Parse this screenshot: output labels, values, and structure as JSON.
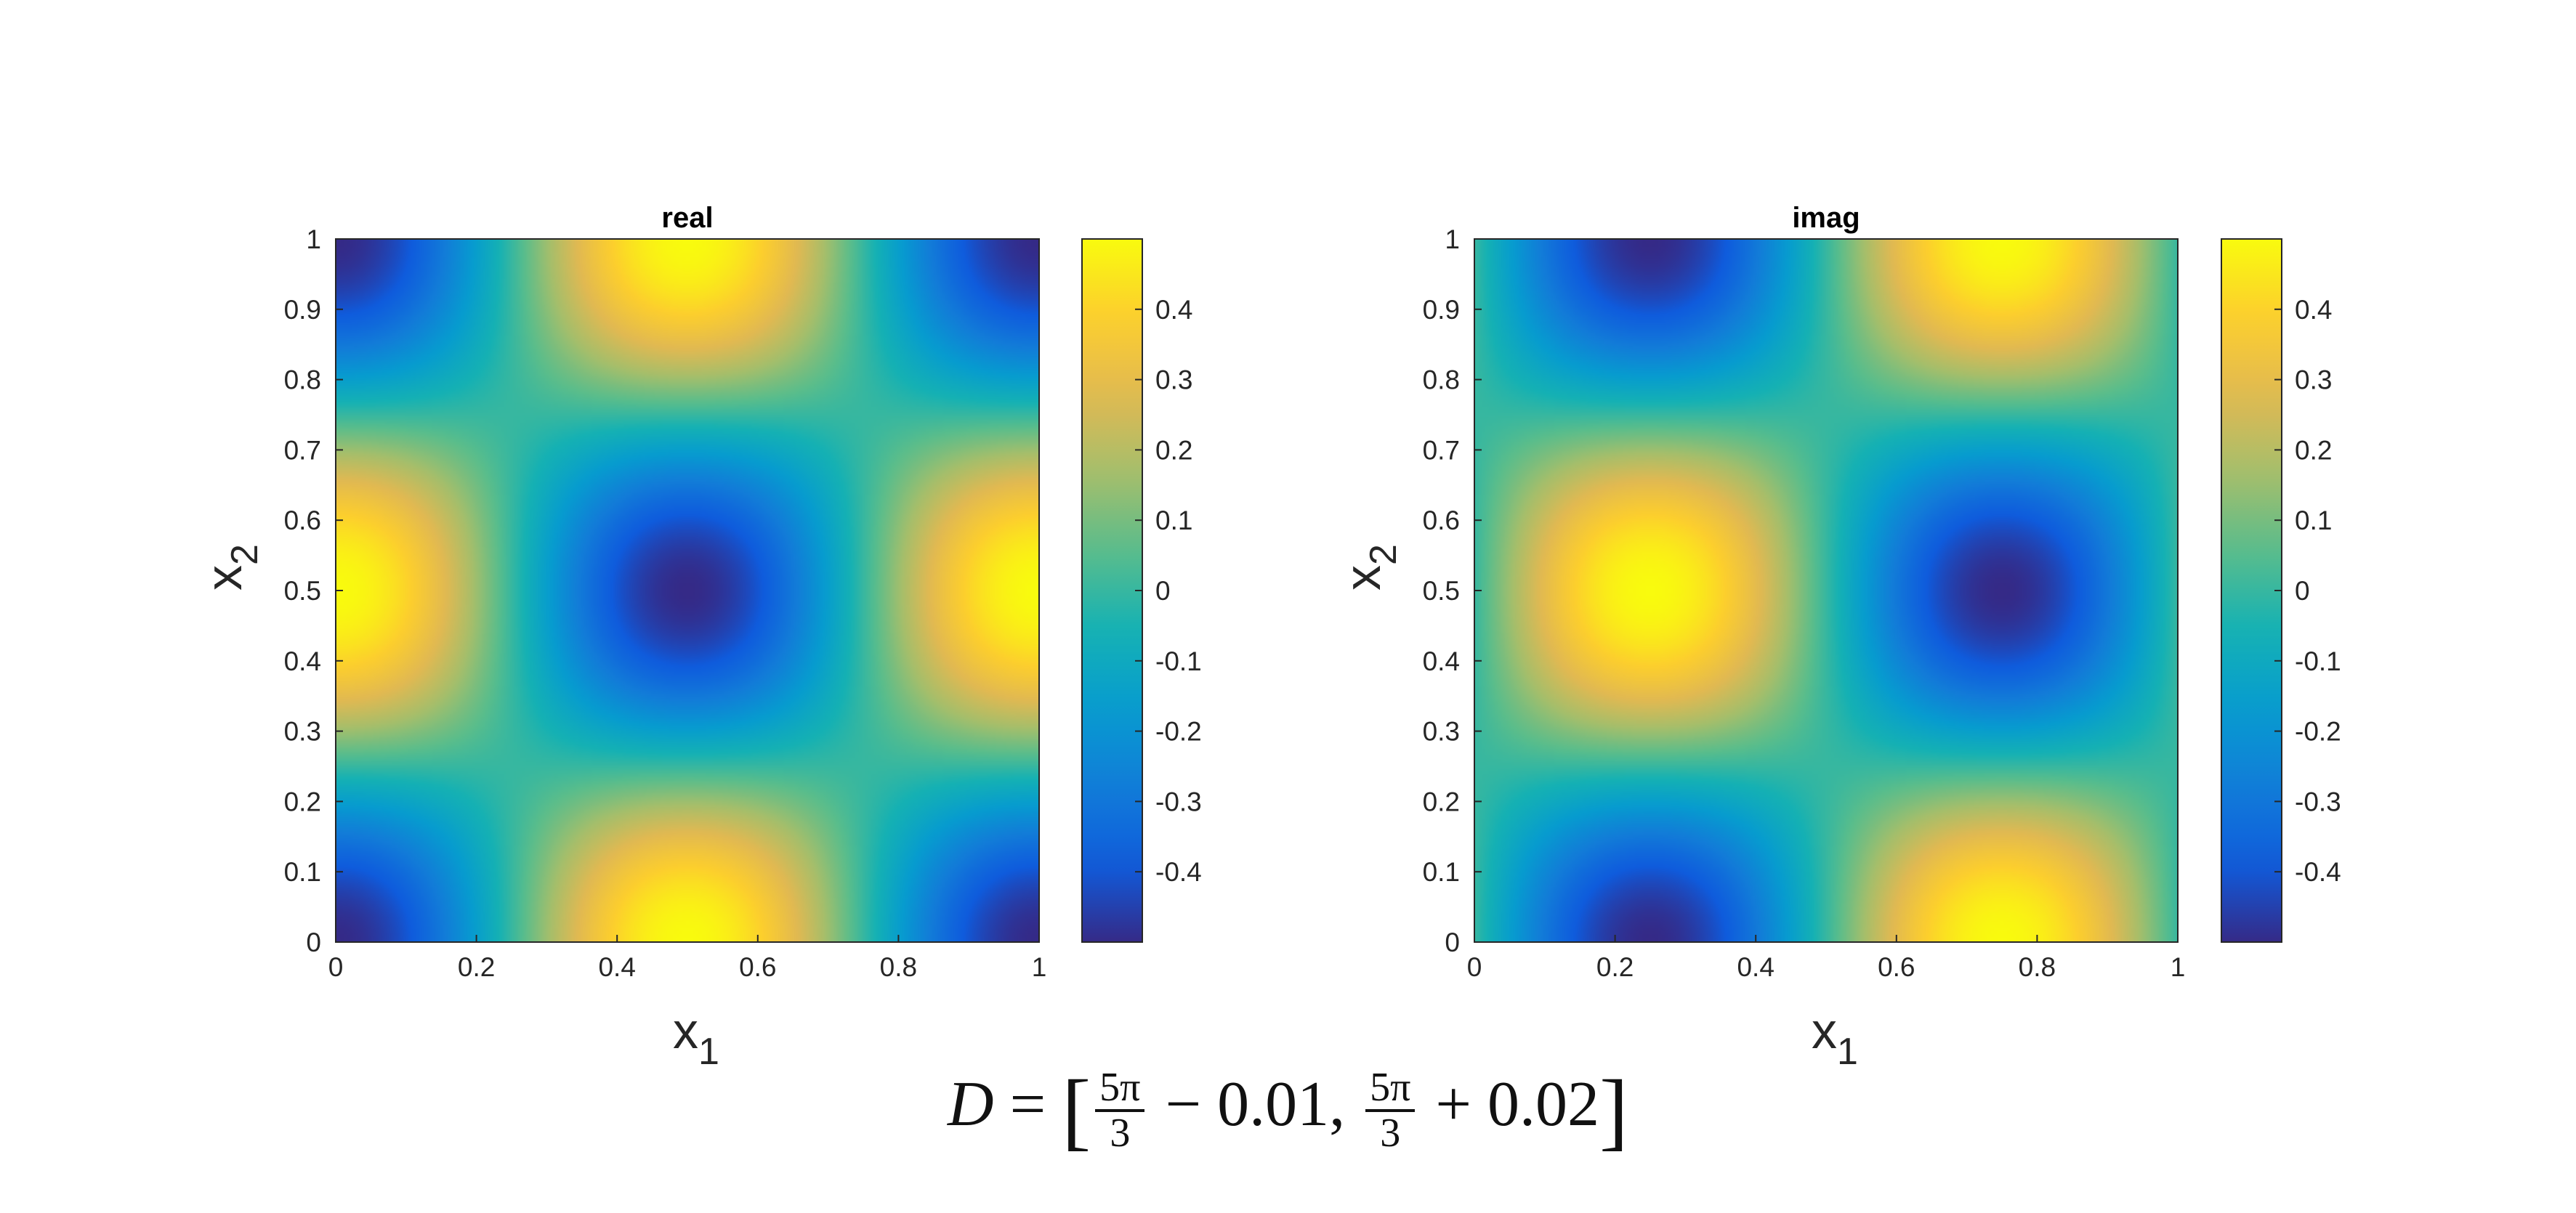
{
  "chart_data": [
    {
      "type": "heatmap",
      "title": "real",
      "xlabel_base": "x",
      "xlabel_sub": "1",
      "ylabel_base": "x",
      "ylabel_sub": "2",
      "xlim": [
        0,
        1
      ],
      "ylim": [
        0,
        1
      ],
      "x_ticks": [
        "0",
        "0.2",
        "0.4",
        "0.6",
        "0.8",
        "1"
      ],
      "y_ticks": [
        "0",
        "0.1",
        "0.2",
        "0.3",
        "0.4",
        "0.5",
        "0.6",
        "0.7",
        "0.8",
        "0.9",
        "1"
      ],
      "colorbar_ticks": [
        "-0.4",
        "-0.3",
        "-0.2",
        "-0.1",
        "0",
        "0.1",
        "0.2",
        "0.3",
        "0.4"
      ],
      "clim": [
        -0.5,
        0.5
      ],
      "field": "f(x1,x2) = -0.5*cos(2*pi*x1)*cos(2*pi*x2)",
      "colormap": "parula"
    },
    {
      "type": "heatmap",
      "title": "imag",
      "xlabel_base": "x",
      "xlabel_sub": "1",
      "ylabel_base": "x",
      "ylabel_sub": "2",
      "xlim": [
        0,
        1
      ],
      "ylim": [
        0,
        1
      ],
      "x_ticks": [
        "0",
        "0.2",
        "0.4",
        "0.6",
        "0.8",
        "1"
      ],
      "y_ticks": [
        "0",
        "0.1",
        "0.2",
        "0.3",
        "0.4",
        "0.5",
        "0.6",
        "0.7",
        "0.8",
        "0.9",
        "1"
      ],
      "colorbar_ticks": [
        "-0.4",
        "-0.3",
        "-0.2",
        "-0.1",
        "0",
        "0.1",
        "0.2",
        "0.3",
        "0.4"
      ],
      "clim": [
        -0.5,
        0.5
      ],
      "field": "f(x1,x2) = -0.5*sin(2*pi*x1)*cos(2*pi*x2)",
      "colormap": "parula"
    }
  ],
  "caption": {
    "lhs": "D",
    "eq": "=",
    "frac_num": "5π",
    "frac_den": "3",
    "term1": "− 0.01,",
    "term2": "+ 0.02"
  }
}
